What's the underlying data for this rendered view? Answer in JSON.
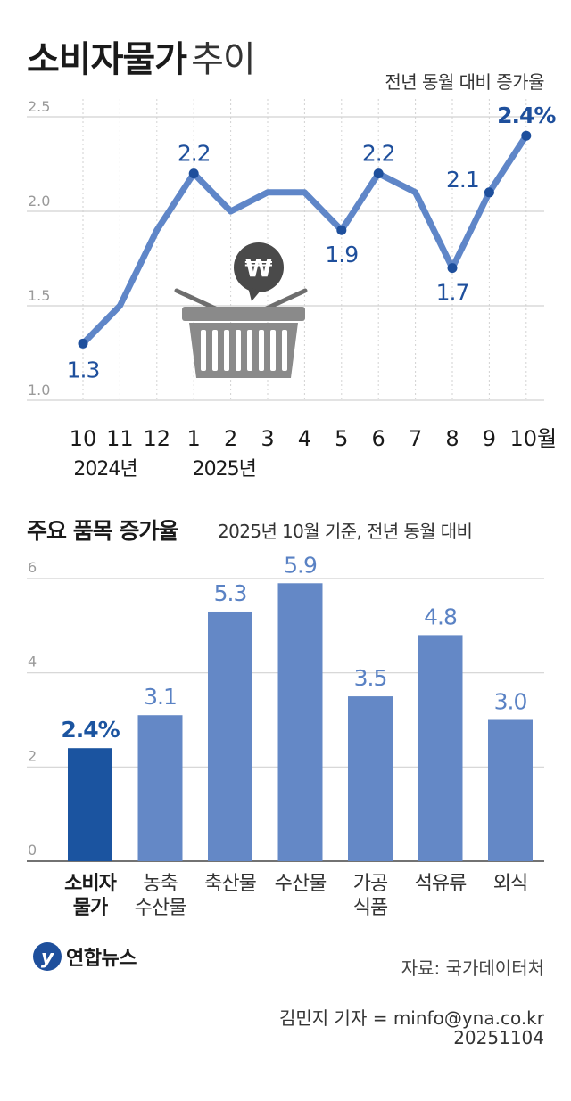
{
  "header": {
    "title_bold": "소비자물가",
    "title_light": "추이",
    "subtitle": "전년 동월 대비 증가율"
  },
  "section2": {
    "title": "주요 품목 증가율",
    "subtitle": "2025년 10월 기준, 전년 동월 대비"
  },
  "footer": {
    "logo_text": "연합뉴스",
    "source": "자료: 국가데이터처",
    "reporter": "김민지 기자 = minfo@yna.co.kr",
    "date": "20251104"
  },
  "colors": {
    "line": "#5f86c8",
    "label": "#1e4f9c",
    "bar": "#6488c6",
    "bar_highlight": "#1b54a0",
    "bar_label": "#5a82c4",
    "grid": "#d2d2d2"
  },
  "chart_data": [
    {
      "type": "line",
      "x": [
        "10",
        "11",
        "12",
        "1",
        "2",
        "3",
        "4",
        "5",
        "6",
        "7",
        "8",
        "9",
        "10월"
      ],
      "year_labels": [
        "2024년",
        "2025년"
      ],
      "series": [
        {
          "values": [
            1.3,
            1.5,
            1.9,
            2.2,
            2.0,
            2.1,
            2.1,
            1.9,
            2.2,
            2.1,
            1.7,
            2.1,
            2.4
          ]
        }
      ],
      "data_labels": [
        "1.3",
        "",
        "",
        "2.2",
        "",
        "",
        "",
        "1.9",
        "2.2",
        "",
        "1.7",
        "2.1",
        "2.4%"
      ],
      "yticks": [
        "1.0",
        "1.5",
        "2.0",
        "2.5"
      ],
      "ylim": [
        1.0,
        2.5
      ],
      "grid": true
    },
    {
      "type": "bar",
      "categories": [
        [
          "소비자",
          "물가"
        ],
        [
          "농축",
          "수산물"
        ],
        [
          "축산물"
        ],
        [
          "수산물"
        ],
        [
          "가공",
          "식품"
        ],
        [
          "석유류"
        ],
        [
          "외식"
        ]
      ],
      "values": [
        2.4,
        3.1,
        5.3,
        5.9,
        3.5,
        4.8,
        3.0
      ],
      "data_labels": [
        "2.4%",
        "3.1",
        "5.3",
        "5.9",
        "3.5",
        "4.8",
        "3.0"
      ],
      "yticks": [
        "0",
        "2",
        "4",
        "6"
      ],
      "ylim": [
        0,
        6
      ],
      "grid": true
    }
  ]
}
